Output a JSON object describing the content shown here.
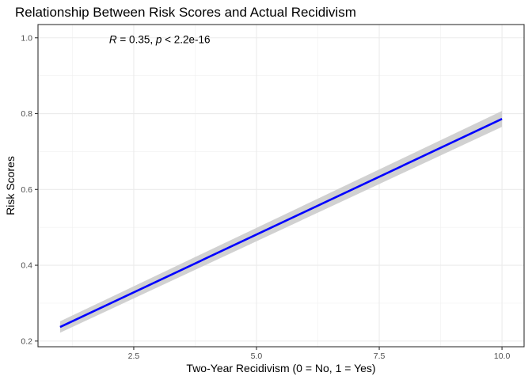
{
  "chart_data": {
    "type": "line",
    "title": "Relationship Between Risk Scores and Actual Recidivism",
    "xlabel": "Two-Year Recidivism (0 = No, 1 = Yes)",
    "ylabel": "Risk Scores",
    "xlim": [
      0.55,
      10.45
    ],
    "ylim": [
      0.185,
      1.035
    ],
    "x_ticks": [
      2.5,
      5.0,
      7.5,
      10.0
    ],
    "x_tick_labels": [
      "2.5",
      "5.0",
      "7.5",
      "10.0"
    ],
    "y_ticks": [
      0.2,
      0.4,
      0.6,
      0.8,
      1.0
    ],
    "y_tick_labels": [
      "0.2",
      "0.4",
      "0.6",
      "0.8",
      "1.0"
    ],
    "grid": true,
    "series": [
      {
        "x": [
          1,
          10
        ],
        "y": [
          0.237,
          0.786
        ],
        "ci_lower": [
          0.222,
          0.765
        ],
        "ci_upper": [
          0.252,
          0.807
        ],
        "color": "#0000ff",
        "band_color": "#cccccc"
      }
    ],
    "annotation": {
      "r_symbol": "R",
      "r_text": " = 0.35, ",
      "p_symbol": "p",
      "p_text": " < 2.2e-16",
      "x": 2.0,
      "y": 0.995
    }
  }
}
